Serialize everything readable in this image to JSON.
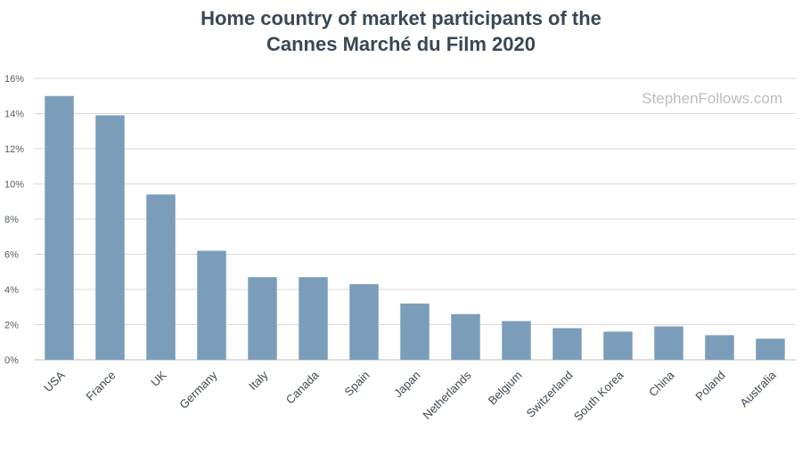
{
  "title_line1": "Home country of market participants of the",
  "title_line2": "Cannes Marché du Film 2020",
  "watermark": "StephenFollows.com",
  "colors": {
    "bar": "#7b9db9",
    "grid": "#d9d9d9",
    "title": "#3a4754"
  },
  "chart_data": {
    "type": "bar",
    "title": "Home country of market participants of the Cannes Marché du Film 2020",
    "xlabel": "",
    "ylabel": "",
    "ylim": [
      0,
      16
    ],
    "y_ticks": [
      "0%",
      "2%",
      "4%",
      "6%",
      "8%",
      "10%",
      "12%",
      "14%",
      "16%"
    ],
    "y_unit": "%",
    "grid": true,
    "categories": [
      "USA",
      "France",
      "UK",
      "Germany",
      "Italy",
      "Canada",
      "Spain",
      "Japan",
      "Netherlands",
      "Belgium",
      "Switzerland",
      "South Korea",
      "China",
      "Poland",
      "Australia"
    ],
    "values": [
      15.0,
      13.9,
      9.4,
      6.2,
      4.7,
      4.7,
      4.3,
      3.2,
      2.6,
      2.2,
      1.8,
      1.6,
      1.9,
      1.4,
      1.2
    ]
  }
}
